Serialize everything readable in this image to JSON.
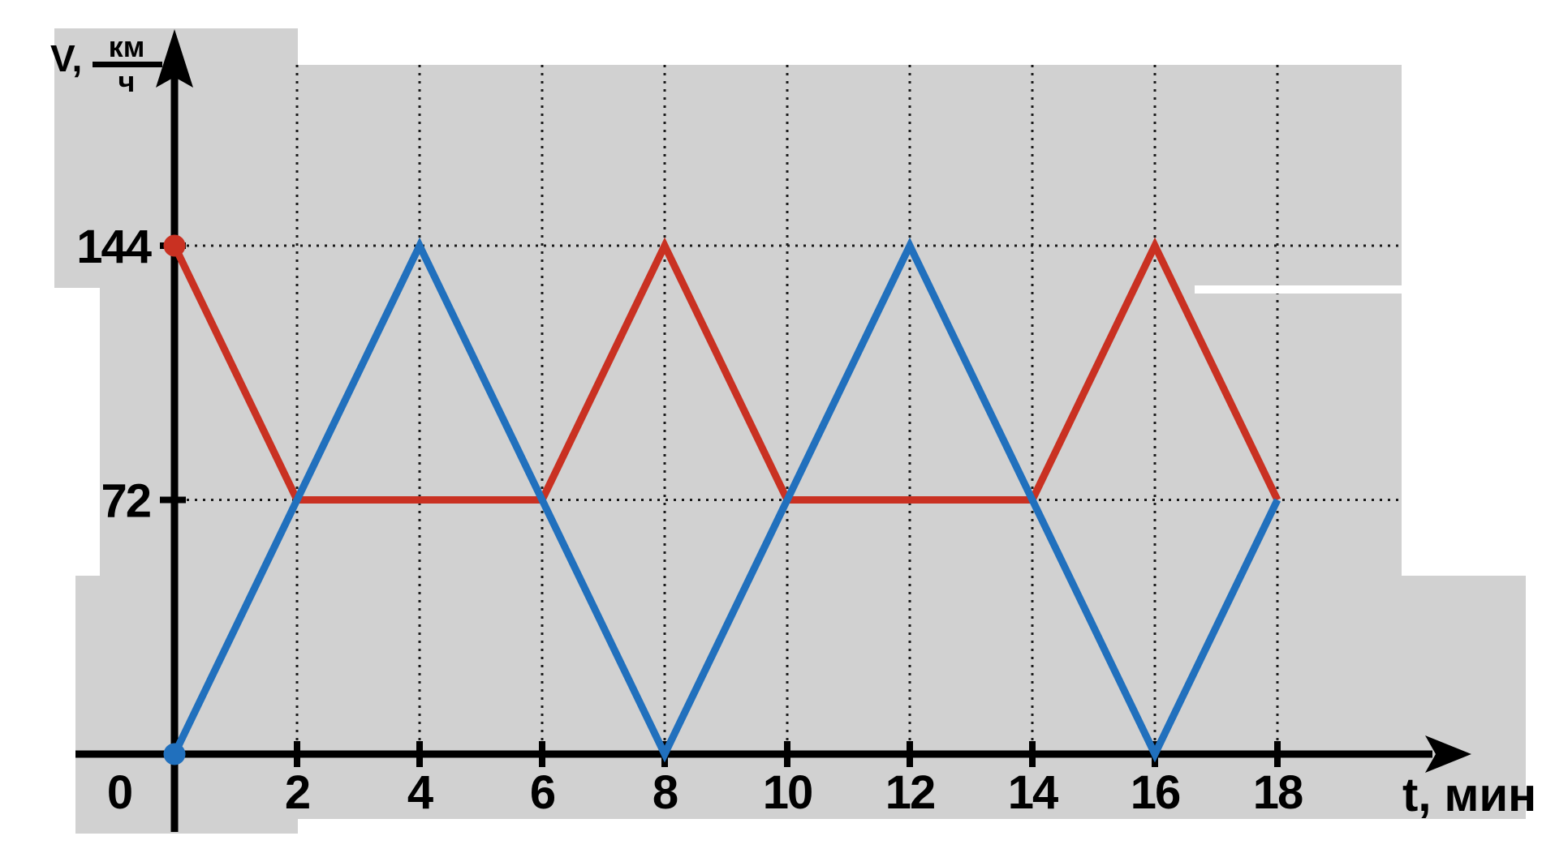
{
  "chart_data": {
    "type": "line",
    "title": "",
    "xlabel": "t, мин",
    "ylabel": "V, км/ч",
    "x_ticks": [
      {
        "t": 0,
        "label": "0"
      },
      {
        "t": 2,
        "label": "2"
      },
      {
        "t": 4,
        "label": "4"
      },
      {
        "t": 6,
        "label": "6"
      },
      {
        "t": 8,
        "label": "8"
      },
      {
        "t": 10,
        "label": "10"
      },
      {
        "t": 12,
        "label": "12"
      },
      {
        "t": 14,
        "label": "14"
      },
      {
        "t": 16,
        "label": "16"
      },
      {
        "t": 18,
        "label": "18"
      }
    ],
    "y_ticks": [
      {
        "v": 72,
        "label": "72"
      },
      {
        "v": 144,
        "label": "144"
      }
    ],
    "xlim": [
      0,
      21
    ],
    "ylim": [
      0,
      205
    ],
    "grid": "dotted",
    "legend_position": "none",
    "series": [
      {
        "name": "red-speed-curve",
        "color": "#c93122",
        "points": [
          [
            0,
            144
          ],
          [
            2,
            72
          ],
          [
            6,
            72
          ],
          [
            8,
            144
          ],
          [
            10,
            72
          ],
          [
            14,
            72
          ],
          [
            16,
            144
          ],
          [
            18,
            72
          ]
        ]
      },
      {
        "name": "blue-speed-curve",
        "color": "#2170bd",
        "points": [
          [
            0,
            0
          ],
          [
            4,
            144
          ],
          [
            8,
            0
          ],
          [
            12,
            144
          ],
          [
            16,
            0
          ],
          [
            18,
            72
          ]
        ]
      }
    ],
    "start_markers": [
      {
        "series": "red-speed-curve",
        "point": [
          0,
          144
        ],
        "color": "#c93122"
      },
      {
        "series": "blue-speed-curve",
        "point": [
          0,
          0
        ],
        "color": "#2170bd"
      }
    ]
  },
  "labels": {
    "y_var": "V,",
    "y_unit_numerator": "км",
    "y_unit_denominator": "ч",
    "x_axis": "t, мин"
  },
  "colors": {
    "background_gray": "#d1d1d1",
    "axis": "#000000",
    "grid": "#1a1a1a",
    "red_series": "#c93122",
    "blue_series": "#2170bd"
  }
}
